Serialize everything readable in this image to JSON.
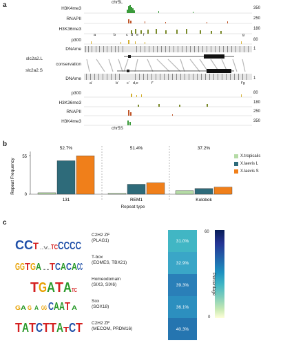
{
  "panel_a": {
    "letter": "a",
    "chr_top": "chr5L",
    "chr_bottom": "chr5S",
    "gene_top": "slc2a2.L",
    "gene_bottom": "slc2a2.S",
    "conservation": "conservation",
    "top_tracks": [
      {
        "name": "H3K4me3",
        "value": "350",
        "color": "#3a9a3a"
      },
      {
        "name": "RNAPII",
        "value": "250",
        "color": "#c0562a"
      },
      {
        "name": "H3K36me3",
        "value": "180",
        "color": "#7a8a2a"
      },
      {
        "name": "p300",
        "value": "80",
        "color": "#d4b030"
      },
      {
        "name": "DNAme",
        "value": "1",
        "color": "#555555"
      }
    ],
    "bottom_tracks": [
      {
        "name": "DNAme",
        "value": "1",
        "color": "#555555"
      },
      {
        "name": "p300",
        "value": "80",
        "color": "#d4b030"
      },
      {
        "name": "H3K36me3",
        "value": "180",
        "color": "#7a8a2a"
      },
      {
        "name": "RNAPII",
        "value": "250",
        "color": "#c0562a"
      },
      {
        "name": "H3K4me3",
        "value": "350",
        "color": "#3a9a3a"
      }
    ],
    "top_marks": [
      "a",
      "b",
      "c",
      "d",
      "e",
      "f",
      "g"
    ],
    "bottom_marks": [
      "a'",
      "b'",
      "c'",
      "d,e",
      "f'",
      "f'g"
    ]
  },
  "panel_b": {
    "letter": "b",
    "chart_data": {
      "type": "bar",
      "categories": [
        "131",
        "REM1",
        "Kolobok"
      ],
      "series": [
        {
          "name": "X.tropicalis",
          "color": "#b5dba6",
          "values": [
            2,
            0,
            5
          ]
        },
        {
          "name": "X.laevis L",
          "color": "#2e6b7a",
          "values": [
            47,
            14,
            8
          ]
        },
        {
          "name": "X.laevis S",
          "color": "#f07f1a",
          "values": [
            54,
            16,
            10
          ]
        }
      ],
      "percent_labels": [
        "52.7%",
        "51.4%",
        "37.2%"
      ],
      "xlabel": "Repeat type",
      "ylabel": "Repeat Frequency",
      "yticks": [
        "0",
        "55"
      ],
      "ylim": [
        0,
        60
      ]
    }
  },
  "panel_c": {
    "letter": "c",
    "motifs": [
      {
        "logo": "CCCT.. TCCCCC",
        "family": "C2H2 ZF",
        "tf": "(PLAG1)",
        "pct": "31.0%",
        "color": "#41b6c4"
      },
      {
        "logo": "GGTGA..TCACACC",
        "family": "T-box",
        "tf": "(EOMES, TBX21)",
        "pct": "32.9%",
        "color": "#3aa6c7"
      },
      {
        "logo": "TGATATC",
        "family": "Homeodomain",
        "tf": "(SIX3, SIX6)",
        "pct": "39.3%",
        "color": "#2a7fb8"
      },
      {
        "logo": "..A..CAAT..",
        "family": "Sox",
        "tf": "(SOX18)",
        "pct": "36.1%",
        "color": "#2c8fbf"
      },
      {
        "logo": "TATCTTATCT",
        "family": "C2H2 ZF",
        "tf": "(MECOM, PRDM16)",
        "pct": "40.3%",
        "color": "#2575b0"
      }
    ],
    "colorbar": {
      "max": "60",
      "min": "0",
      "label": "Percentage"
    }
  }
}
